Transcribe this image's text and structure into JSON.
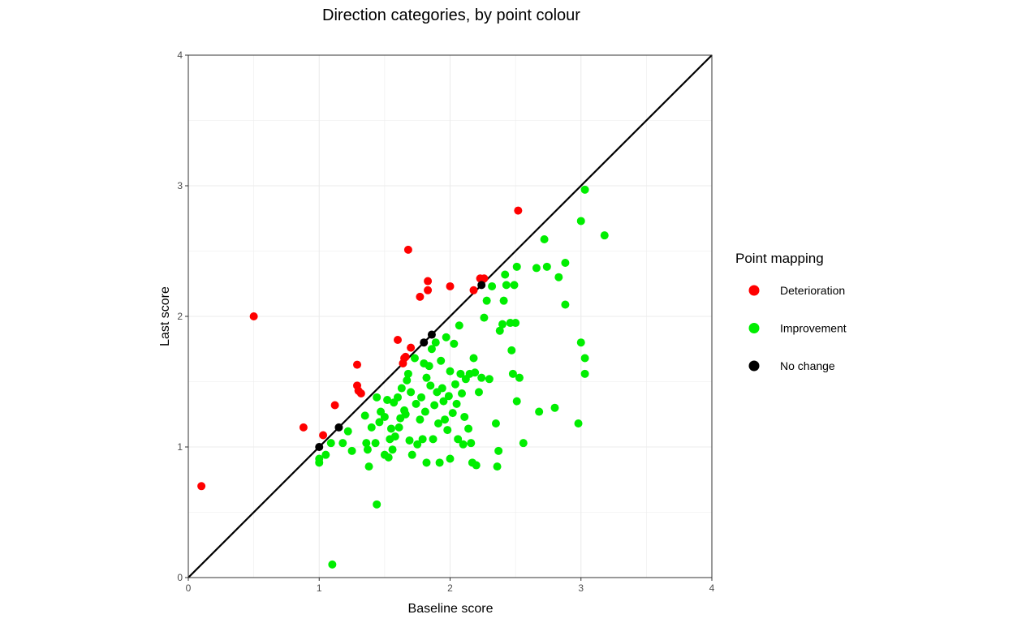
{
  "chart_data": {
    "type": "scatter",
    "title": "Direction categories, by point colour",
    "xlabel": "Baseline score",
    "ylabel": "Last score",
    "xlim": [
      0,
      4
    ],
    "ylim": [
      0,
      4
    ],
    "x_ticks": [
      "0",
      "1",
      "2",
      "3",
      "4"
    ],
    "y_ticks": [
      "0",
      "1",
      "2",
      "3",
      "4"
    ],
    "grid": true,
    "reference_line": {
      "slope": 1,
      "intercept": 0,
      "color": "#000000"
    },
    "legend": {
      "title": "Point mapping",
      "placement": "right"
    },
    "series": [
      {
        "name": "Deterioration",
        "color": "#ff0000",
        "points": [
          [
            0.1,
            0.7
          ],
          [
            0.5,
            2.0
          ],
          [
            0.88,
            1.15
          ],
          [
            1.03,
            1.09
          ],
          [
            1.12,
            1.32
          ],
          [
            1.29,
            1.63
          ],
          [
            1.29,
            1.47
          ],
          [
            1.3,
            1.43
          ],
          [
            1.32,
            1.41
          ],
          [
            1.6,
            1.82
          ],
          [
            1.64,
            1.64
          ],
          [
            1.65,
            1.68
          ],
          [
            1.66,
            1.69
          ],
          [
            1.68,
            2.51
          ],
          [
            1.7,
            1.76
          ],
          [
            1.77,
            2.15
          ],
          [
            1.83,
            2.27
          ],
          [
            1.83,
            2.2
          ],
          [
            2.0,
            2.23
          ],
          [
            2.18,
            2.2
          ],
          [
            2.23,
            2.29
          ],
          [
            2.26,
            2.29
          ],
          [
            2.52,
            2.81
          ]
        ]
      },
      {
        "name": "Improvement",
        "color": "#00ee00",
        "points": [
          [
            1.0,
            0.91
          ],
          [
            1.0,
            0.88
          ],
          [
            1.05,
            0.94
          ],
          [
            1.09,
            1.03
          ],
          [
            1.1,
            0.1
          ],
          [
            1.18,
            1.03
          ],
          [
            1.22,
            1.12
          ],
          [
            1.25,
            0.97
          ],
          [
            1.35,
            1.24
          ],
          [
            1.36,
            1.03
          ],
          [
            1.37,
            0.98
          ],
          [
            1.38,
            0.85
          ],
          [
            1.4,
            1.15
          ],
          [
            1.43,
            1.03
          ],
          [
            1.44,
            1.38
          ],
          [
            1.44,
            0.56
          ],
          [
            1.46,
            1.19
          ],
          [
            1.47,
            1.27
          ],
          [
            1.5,
            1.23
          ],
          [
            1.5,
            0.94
          ],
          [
            1.52,
            1.36
          ],
          [
            1.53,
            0.92
          ],
          [
            1.54,
            1.06
          ],
          [
            1.55,
            1.14
          ],
          [
            1.56,
            0.98
          ],
          [
            1.57,
            1.34
          ],
          [
            1.58,
            1.08
          ],
          [
            1.6,
            1.38
          ],
          [
            1.61,
            1.15
          ],
          [
            1.62,
            1.22
          ],
          [
            1.63,
            1.45
          ],
          [
            1.65,
            1.28
          ],
          [
            1.66,
            1.25
          ],
          [
            1.67,
            1.51
          ],
          [
            1.68,
            1.56
          ],
          [
            1.69,
            1.05
          ],
          [
            1.7,
            1.42
          ],
          [
            1.71,
            0.94
          ],
          [
            1.73,
            1.68
          ],
          [
            1.74,
            1.33
          ],
          [
            1.75,
            1.02
          ],
          [
            1.77,
            1.21
          ],
          [
            1.78,
            1.38
          ],
          [
            1.79,
            1.06
          ],
          [
            1.8,
            1.64
          ],
          [
            1.81,
            1.27
          ],
          [
            1.82,
            1.53
          ],
          [
            1.82,
            0.88
          ],
          [
            1.84,
            1.62
          ],
          [
            1.85,
            1.47
          ],
          [
            1.86,
            1.75
          ],
          [
            1.87,
            1.06
          ],
          [
            1.88,
            1.32
          ],
          [
            1.89,
            1.8
          ],
          [
            1.9,
            1.42
          ],
          [
            1.91,
            1.18
          ],
          [
            1.92,
            0.88
          ],
          [
            1.93,
            1.66
          ],
          [
            1.94,
            1.45
          ],
          [
            1.95,
            1.35
          ],
          [
            1.96,
            1.21
          ],
          [
            1.97,
            1.84
          ],
          [
            1.98,
            1.13
          ],
          [
            1.99,
            1.39
          ],
          [
            2.0,
            1.58
          ],
          [
            2.0,
            0.91
          ],
          [
            2.02,
            1.26
          ],
          [
            2.03,
            1.79
          ],
          [
            2.04,
            1.48
          ],
          [
            2.05,
            1.33
          ],
          [
            2.06,
            1.06
          ],
          [
            2.07,
            1.93
          ],
          [
            2.08,
            1.56
          ],
          [
            2.09,
            1.41
          ],
          [
            2.1,
            1.02
          ],
          [
            2.11,
            1.23
          ],
          [
            2.12,
            1.52
          ],
          [
            2.14,
            1.14
          ],
          [
            2.15,
            1.56
          ],
          [
            2.16,
            1.03
          ],
          [
            2.17,
            0.88
          ],
          [
            2.18,
            1.68
          ],
          [
            2.19,
            1.57
          ],
          [
            2.2,
            0.86
          ],
          [
            2.22,
            1.42
          ],
          [
            2.24,
            1.53
          ],
          [
            2.26,
            1.99
          ],
          [
            2.28,
            2.12
          ],
          [
            2.3,
            1.52
          ],
          [
            2.32,
            2.23
          ],
          [
            2.35,
            1.18
          ],
          [
            2.36,
            0.85
          ],
          [
            2.37,
            0.97
          ],
          [
            2.38,
            1.89
          ],
          [
            2.4,
            1.94
          ],
          [
            2.41,
            2.12
          ],
          [
            2.42,
            2.32
          ],
          [
            2.43,
            2.24
          ],
          [
            2.46,
            1.95
          ],
          [
            2.47,
            1.74
          ],
          [
            2.48,
            1.56
          ],
          [
            2.49,
            2.24
          ],
          [
            2.5,
            1.95
          ],
          [
            2.51,
            1.35
          ],
          [
            2.51,
            2.38
          ],
          [
            2.53,
            1.53
          ],
          [
            2.56,
            1.03
          ],
          [
            2.66,
            2.37
          ],
          [
            2.68,
            1.27
          ],
          [
            2.72,
            2.59
          ],
          [
            2.74,
            2.38
          ],
          [
            2.8,
            1.3
          ],
          [
            2.83,
            2.3
          ],
          [
            2.88,
            2.41
          ],
          [
            2.88,
            2.09
          ],
          [
            2.98,
            1.18
          ],
          [
            3.0,
            2.73
          ],
          [
            3.0,
            1.8
          ],
          [
            3.03,
            2.97
          ],
          [
            3.03,
            1.68
          ],
          [
            3.03,
            1.56
          ],
          [
            3.18,
            2.62
          ]
        ]
      },
      {
        "name": "No change",
        "color": "#000000",
        "points": [
          [
            1.0,
            1.0
          ],
          [
            1.15,
            1.15
          ],
          [
            1.8,
            1.8
          ],
          [
            1.86,
            1.86
          ],
          [
            2.24,
            2.24
          ]
        ]
      }
    ]
  }
}
